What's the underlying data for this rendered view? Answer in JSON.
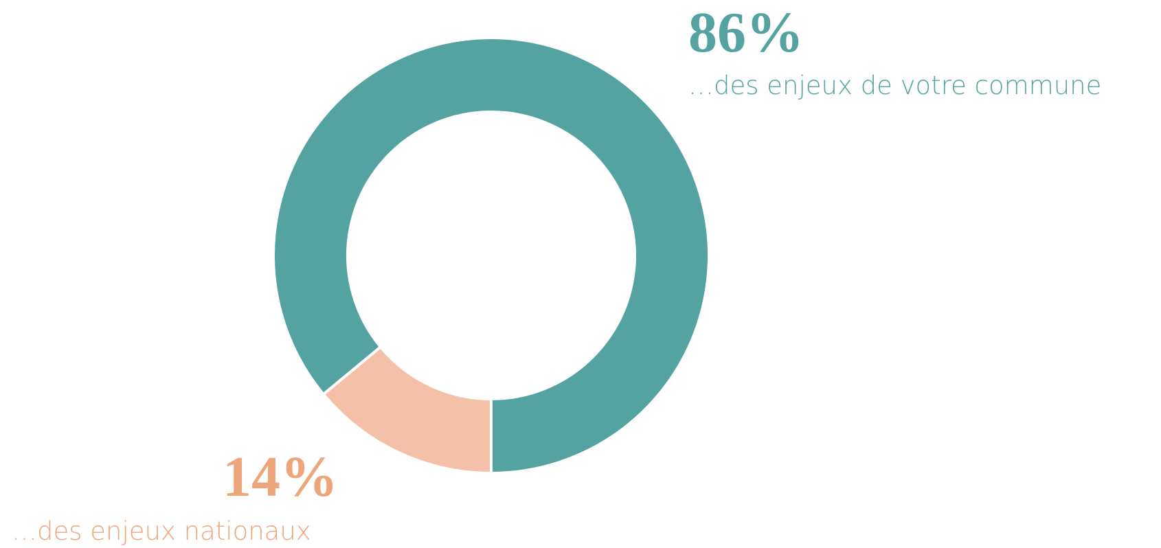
{
  "chart_data": {
    "type": "donut",
    "categories": [
      "…des enjeux de votre commune",
      "…des enjeux nationaux"
    ],
    "values": [
      86,
      14
    ],
    "value_labels": [
      "86%",
      "14%"
    ],
    "colors": [
      "#55a3a0",
      "#f4c1a8"
    ],
    "label_colors": [
      "#55a3a0",
      "#eea57c"
    ]
  }
}
